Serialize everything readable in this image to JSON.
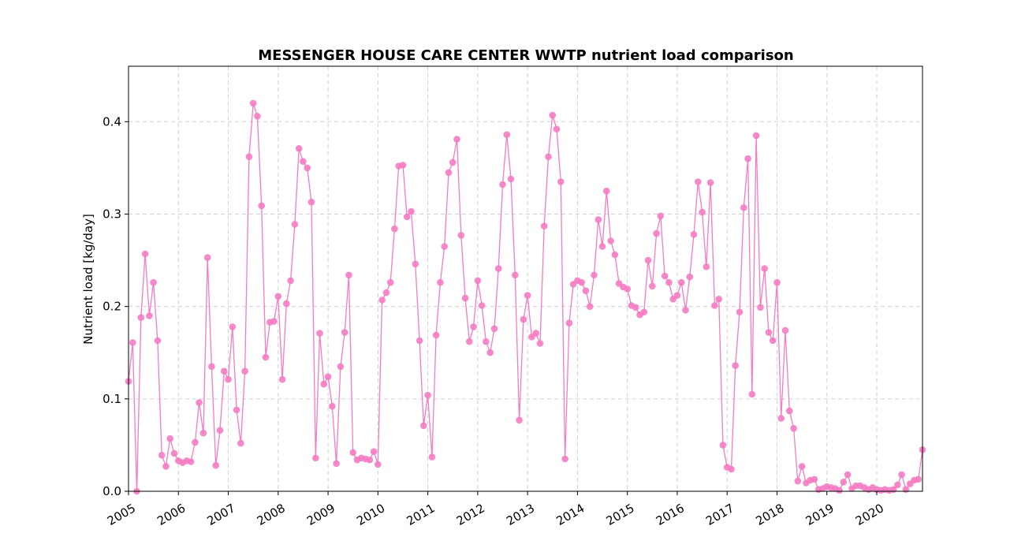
{
  "chart_data": {
    "type": "line",
    "title": "MESSENGER HOUSE CARE CENTER WWTP nutrient load comparison",
    "xlabel": "",
    "ylabel": "Nutrient load [kg/day]",
    "xlim": [
      "2005-01",
      "2020-12"
    ],
    "ylim": [
      0,
      0.46
    ],
    "grid": true,
    "x_ticks": [
      "2005",
      "2006",
      "2007",
      "2008",
      "2009",
      "2010",
      "2011",
      "2012",
      "2013",
      "2014",
      "2015",
      "2016",
      "2017",
      "2018",
      "2019",
      "2020"
    ],
    "y_ticks": [
      "0.0",
      "0.1",
      "0.2",
      "0.3",
      "0.4"
    ],
    "color": "#f47cc3",
    "series": [
      {
        "start": "2005-01",
        "frequency": "monthly",
        "x": [
          "2005-01",
          "2005-02",
          "2005-03",
          "2005-04",
          "2005-05",
          "2005-06",
          "2005-07",
          "2005-08",
          "2005-09",
          "2005-10",
          "2005-11",
          "2005-12",
          "2006-01",
          "2006-02",
          "2006-03",
          "2006-04",
          "2006-05",
          "2006-06",
          "2006-07",
          "2006-08",
          "2006-09",
          "2006-10",
          "2006-11",
          "2006-12",
          "2007-01",
          "2007-02",
          "2007-03",
          "2007-04",
          "2007-05",
          "2007-06",
          "2007-07",
          "2007-08",
          "2007-09",
          "2007-10",
          "2007-11",
          "2007-12",
          "2008-01",
          "2008-02",
          "2008-03",
          "2008-04",
          "2008-05",
          "2008-06",
          "2008-07",
          "2008-08",
          "2008-09",
          "2008-10",
          "2008-11",
          "2008-12",
          "2009-01",
          "2009-02",
          "2009-03",
          "2009-04",
          "2009-05",
          "2009-06",
          "2009-07",
          "2009-08",
          "2009-09",
          "2009-10",
          "2009-11",
          "2009-12",
          "2010-01",
          "2010-02",
          "2010-03",
          "2010-04",
          "2010-05",
          "2010-06",
          "2010-07",
          "2010-08",
          "2010-09",
          "2010-10",
          "2010-11",
          "2010-12",
          "2011-01",
          "2011-02",
          "2011-03",
          "2011-04",
          "2011-05",
          "2011-06",
          "2011-07",
          "2011-08",
          "2011-09",
          "2011-10",
          "2011-11",
          "2011-12",
          "2012-01",
          "2012-02",
          "2012-03",
          "2012-04",
          "2012-05",
          "2012-06",
          "2012-07",
          "2012-08",
          "2012-09",
          "2012-10",
          "2012-11",
          "2012-12",
          "2013-01",
          "2013-02",
          "2013-03",
          "2013-04",
          "2013-05",
          "2013-06",
          "2013-07",
          "2013-08",
          "2013-09",
          "2013-10",
          "2013-11",
          "2013-12",
          "2014-01",
          "2014-02",
          "2014-03",
          "2014-04",
          "2014-05",
          "2014-06",
          "2014-07",
          "2014-08",
          "2014-09",
          "2014-10",
          "2014-11",
          "2014-12",
          "2015-01",
          "2015-02",
          "2015-03",
          "2015-04",
          "2015-05",
          "2015-06",
          "2015-07",
          "2015-08",
          "2015-09",
          "2015-10",
          "2015-11",
          "2015-12",
          "2016-01",
          "2016-02",
          "2016-03",
          "2016-04",
          "2016-05",
          "2016-06",
          "2016-07",
          "2016-08",
          "2016-09",
          "2016-10",
          "2016-11",
          "2016-12",
          "2017-01",
          "2017-02",
          "2017-03",
          "2017-04",
          "2017-05",
          "2017-06",
          "2017-07",
          "2017-08",
          "2017-09",
          "2017-10",
          "2017-11",
          "2017-12",
          "2018-01",
          "2018-02",
          "2018-03",
          "2018-04",
          "2018-05",
          "2018-06",
          "2018-07",
          "2018-08",
          "2018-09",
          "2018-10",
          "2018-11",
          "2018-12",
          "2019-01",
          "2019-02",
          "2019-03",
          "2019-04",
          "2019-05",
          "2019-06",
          "2019-07",
          "2019-08",
          "2019-09",
          "2019-10",
          "2019-11",
          "2019-12",
          "2020-01",
          "2020-02",
          "2020-03",
          "2020-04",
          "2020-05",
          "2020-06",
          "2020-07",
          "2020-08",
          "2020-09",
          "2020-10",
          "2020-11",
          "2020-12"
        ],
        "values": [
          0.119,
          0.161,
          0.0,
          0.188,
          0.257,
          0.19,
          0.226,
          0.163,
          0.039,
          0.027,
          0.057,
          0.041,
          0.033,
          0.031,
          0.033,
          0.032,
          0.053,
          0.096,
          0.063,
          0.253,
          0.135,
          0.028,
          0.066,
          0.13,
          0.121,
          0.178,
          0.088,
          0.052,
          0.13,
          0.362,
          0.42,
          0.406,
          0.309,
          0.145,
          0.183,
          0.184,
          0.211,
          0.121,
          0.203,
          0.228,
          0.289,
          0.371,
          0.357,
          0.35,
          0.313,
          0.036,
          0.171,
          0.116,
          0.124,
          0.092,
          0.03,
          0.135,
          0.172,
          0.234,
          0.042,
          0.034,
          0.036,
          0.035,
          0.034,
          0.043,
          0.029,
          0.207,
          0.215,
          0.226,
          0.284,
          0.352,
          0.353,
          0.297,
          0.303,
          0.246,
          0.163,
          0.071,
          0.104,
          0.037,
          0.169,
          0.226,
          0.265,
          0.345,
          0.356,
          0.381,
          0.277,
          0.209,
          0.162,
          0.178,
          0.228,
          0.201,
          0.162,
          0.15,
          0.176,
          0.241,
          0.332,
          0.386,
          0.338,
          0.234,
          0.077,
          0.186,
          0.212,
          0.167,
          0.171,
          0.16,
          0.287,
          0.362,
          0.407,
          0.392,
          0.335,
          0.035,
          0.182,
          0.224,
          0.228,
          0.226,
          0.217,
          0.2,
          0.234,
          0.294,
          0.265,
          0.325,
          0.271,
          0.256,
          0.225,
          0.221,
          0.219,
          0.201,
          0.199,
          0.191,
          0.194,
          0.25,
          0.222,
          0.279,
          0.298,
          0.233,
          0.226,
          0.208,
          0.212,
          0.226,
          0.196,
          0.232,
          0.278,
          0.335,
          0.302,
          0.243,
          0.334,
          0.201,
          0.208,
          0.05,
          0.026,
          0.024,
          0.136,
          0.194,
          0.307,
          0.36,
          0.105,
          0.385,
          0.199,
          0.241,
          0.172,
          0.163,
          0.226,
          0.079,
          0.174,
          0.087,
          0.068,
          0.011,
          0.027,
          0.009,
          0.012,
          0.013,
          0.002,
          0.003,
          0.005,
          0.004,
          0.003,
          0.001,
          0.01,
          0.018,
          0.003,
          0.006,
          0.006,
          0.004,
          0.002,
          0.004,
          0.002,
          0.001,
          0.002,
          0.001,
          0.002,
          0.007,
          0.018,
          0.002,
          0.008,
          0.012,
          0.013,
          0.045
        ]
      }
    ]
  }
}
